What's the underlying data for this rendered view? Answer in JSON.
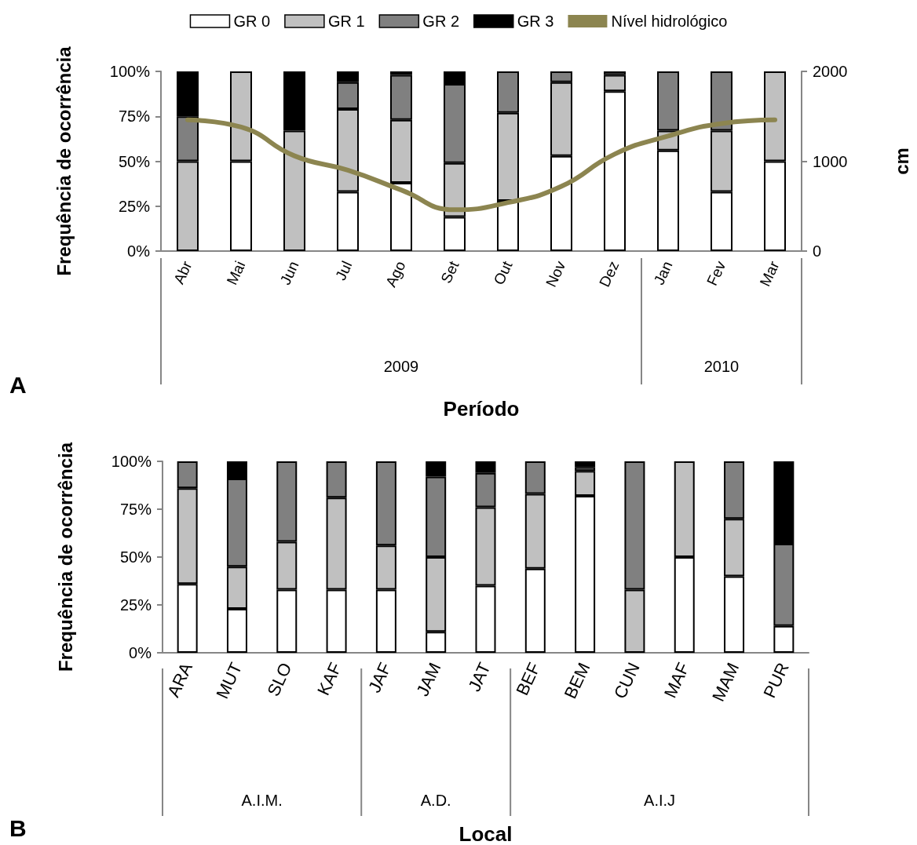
{
  "chart_data": [
    {
      "type": "bar",
      "stacked": true,
      "xlabel": "Período",
      "ylabel": "Frequência de ocorrência",
      "y2label": "cm",
      "legend": "top",
      "categories": [
        "Abr",
        "Mai",
        "Jun",
        "Jul",
        "Ago",
        "Set",
        "Out",
        "Nov",
        "Dez",
        "Jan",
        "Fev",
        "Mar"
      ],
      "series": [
        {
          "name": "GR 0",
          "color": "#ffffff",
          "values": [
            null,
            50,
            null,
            33,
            38,
            19,
            28,
            53,
            89,
            56,
            33,
            50
          ]
        },
        {
          "name": "GR 1",
          "color": "#c0c0c0",
          "values": [
            50,
            50,
            67,
            46,
            35,
            30,
            49,
            41,
            9,
            11,
            34,
            50
          ]
        },
        {
          "name": "GR 2",
          "color": "#808080",
          "values": [
            25,
            null,
            null,
            15,
            25,
            44,
            23,
            6,
            2,
            33,
            33,
            null
          ]
        },
        {
          "name": "GR 3",
          "color": "#000000",
          "values": [
            25,
            null,
            33,
            6,
            2,
            7,
            null,
            null,
            null,
            null,
            null,
            null
          ]
        },
        {
          "name": "Nível hidrológico",
          "type": "line",
          "axis": "y2",
          "color": "#8c8550",
          "marker": "none",
          "line_style": "solid",
          "values": [
            1460,
            1380,
            1060,
            900,
            680,
            460,
            540,
            720,
            1080,
            1280,
            1420,
            1460
          ]
        }
      ],
      "ylim": [
        0,
        100
      ],
      "yticks": [
        {
          "value": 0,
          "label": "0%"
        },
        {
          "value": 25,
          "label": "25%"
        },
        {
          "value": 50,
          "label": "50%"
        },
        {
          "value": 75,
          "label": "75%"
        },
        {
          "value": 100,
          "label": "100%"
        }
      ],
      "y2lim": [
        0,
        2000
      ],
      "y2ticks": [
        0,
        1000,
        2000
      ],
      "annotations": [
        "2009",
        "2010",
        "A"
      ]
    },
    {
      "type": "bar",
      "stacked": true,
      "xlabel": "Local",
      "ylabel": "Frequência de ocorrência",
      "categories": [
        "ARA",
        "MUT",
        "SLO",
        "KAF",
        "JAF",
        "JAM",
        "JAT",
        "BEF",
        "BEM",
        "CUN",
        "MAF",
        "MAM",
        "PUR"
      ],
      "series": [
        {
          "color": "#ffffff",
          "values": [
            36,
            23,
            33,
            33,
            33,
            11,
            35,
            44,
            82,
            null,
            50,
            40,
            14
          ]
        },
        {
          "color": "#c0c0c0",
          "values": [
            50,
            22,
            25,
            48,
            23,
            39,
            41,
            39,
            13,
            33,
            50,
            30,
            null
          ]
        },
        {
          "color": "#808080",
          "values": [
            14,
            46,
            42,
            19,
            44,
            42,
            18,
            17,
            2,
            67,
            null,
            30,
            43
          ]
        },
        {
          "color": "#000000",
          "values": [
            null,
            9,
            null,
            null,
            null,
            8,
            6,
            null,
            3,
            null,
            null,
            null,
            43
          ]
        }
      ],
      "ylim": [
        0,
        100
      ],
      "yticks": [
        {
          "value": 0,
          "label": "0%"
        },
        {
          "value": 25,
          "label": "25%"
        },
        {
          "value": 50,
          "label": "50%"
        },
        {
          "value": 75,
          "label": "75%"
        },
        {
          "value": 100,
          "label": "100%"
        }
      ],
      "annotations": [
        "A.I.M.",
        "A.D.",
        "A.I.J",
        "B"
      ]
    }
  ]
}
